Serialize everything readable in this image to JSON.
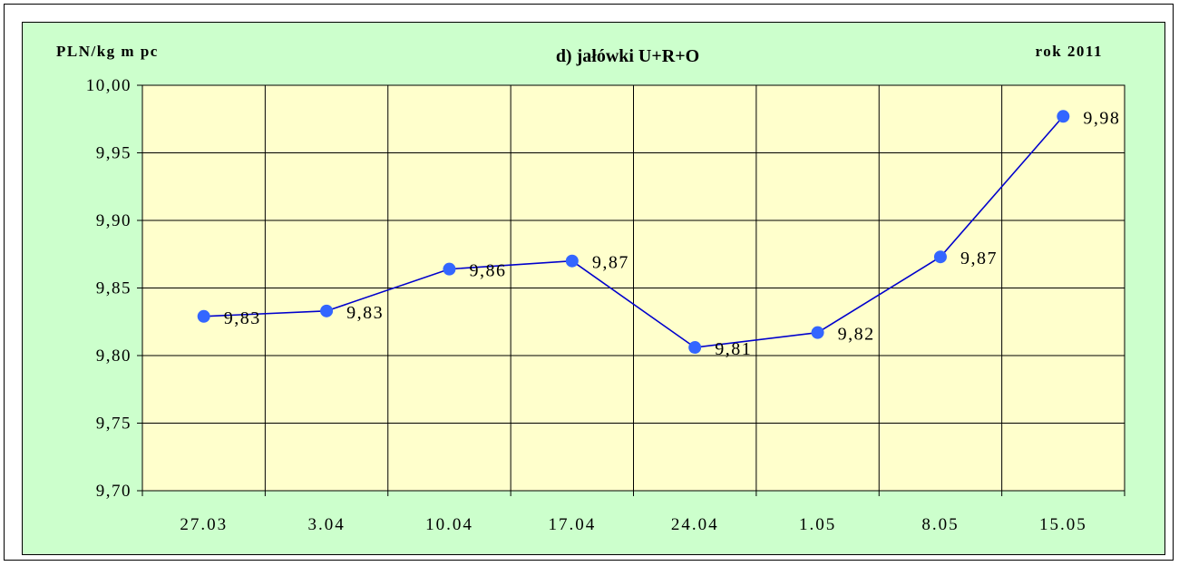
{
  "colors": {
    "panel_background": "#ccffcc",
    "plot_background": "#ffffcc",
    "line": "#0000cc",
    "marker": "#3366ff",
    "grid": "#000000"
  },
  "chart_data": {
    "type": "line",
    "title": "d) jałówki U+R+O",
    "ylabel": "PLN/kg m pc",
    "annotation": "rok 2011",
    "categories": [
      "27.03",
      "3.04",
      "10.04",
      "17.04",
      "24.04",
      "1.05",
      "8.05",
      "15.05"
    ],
    "values": [
      9.829,
      9.833,
      9.864,
      9.87,
      9.806,
      9.817,
      9.873,
      9.977
    ],
    "data_labels": [
      "9,83",
      "9,83",
      "9,86",
      "9,87",
      "9,81",
      "9,82",
      "9,87",
      "9,98"
    ],
    "ylim": [
      9.7,
      10.0
    ],
    "yticks": [
      10.0,
      9.95,
      9.9,
      9.85,
      9.8,
      9.75,
      9.7
    ],
    "ytick_labels": [
      "10,00",
      "9,95",
      "9,90",
      "9,85",
      "9,80",
      "9,75",
      "9,70"
    ],
    "grid": true,
    "legend": "none"
  }
}
